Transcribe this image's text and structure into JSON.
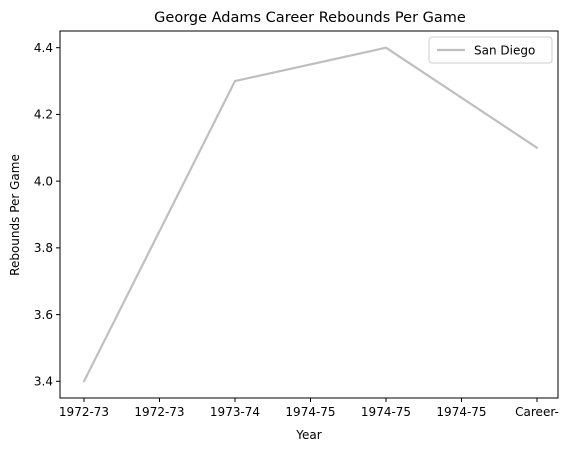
{
  "chart_data": {
    "type": "line",
    "title": "George Adams  Career Rebounds Per Game",
    "xlabel": "Year",
    "ylabel": "Rebounds Per Game",
    "categories": [
      "1972-73",
      "1972-73",
      "1973-74",
      "1974-75",
      "1974-75",
      "1974-75",
      "Career-"
    ],
    "yticks": [
      "3.4",
      "3.6",
      "3.8",
      "4.0",
      "4.2",
      "4.4"
    ],
    "ylim": [
      3.35,
      4.45
    ],
    "grid": false,
    "legend_position": "top-right",
    "series": [
      {
        "name": "San Diego",
        "color": "#bfbfbf",
        "points": [
          {
            "x_index": 0,
            "y": 3.4
          },
          {
            "x_index": 2,
            "y": 4.3
          },
          {
            "x_index": 4,
            "y": 4.4
          },
          {
            "x_index": 6,
            "y": 4.1
          }
        ]
      }
    ]
  }
}
